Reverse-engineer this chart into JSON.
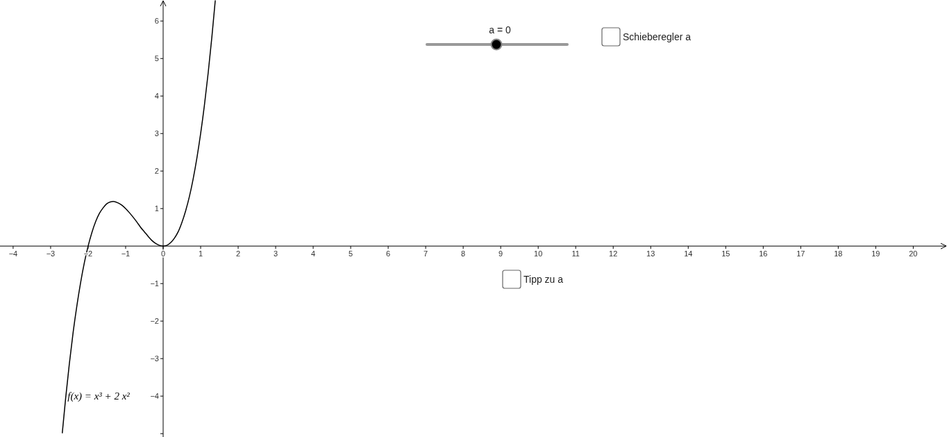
{
  "chart_data": {
    "type": "line",
    "xlim": [
      -4.35,
      20.9
    ],
    "ylim": [
      -5.09,
      6.56
    ],
    "xticks": [
      {
        "value": -4,
        "label": "−4"
      },
      {
        "value": -3,
        "label": "−3"
      },
      {
        "value": -2,
        "label": "−2"
      },
      {
        "value": -1,
        "label": "−1"
      },
      0,
      1,
      2,
      3,
      4,
      5,
      6,
      7,
      8,
      9,
      10,
      11,
      12,
      13,
      14,
      15,
      16,
      17,
      18,
      19,
      20
    ],
    "yticks": [
      {
        "value": -5,
        "label": null
      },
      {
        "value": -4,
        "label": "−4"
      },
      {
        "value": -3,
        "label": "−3"
      },
      {
        "value": -2,
        "label": "−2"
      },
      {
        "value": -1,
        "label": "−1"
      },
      1,
      2,
      3,
      4,
      5,
      6
    ],
    "grid": false,
    "marker": "none",
    "line_style": "solid",
    "series": [
      {
        "color": "#000000",
        "x": [
          -2.69,
          -2.6,
          -2.5,
          -2.4,
          -2.3,
          -2.2,
          -2.1,
          -2.0,
          -1.9,
          -1.8,
          -1.7,
          -1.6,
          -1.5,
          -1.4,
          -1.33,
          -1.2,
          -1.1,
          -1.0,
          -0.9,
          -0.8,
          -0.7,
          -0.6,
          -0.5,
          -0.4,
          -0.3,
          -0.2,
          -0.1,
          0,
          0.1,
          0.2,
          0.3,
          0.4,
          0.5,
          0.6,
          0.7,
          0.8,
          0.9,
          1.0,
          1.1,
          1.2,
          1.3,
          1.39
        ],
        "values": [
          -4.99,
          -4.06,
          -3.13,
          -2.3,
          -1.59,
          -0.97,
          -0.44,
          0,
          0.36,
          0.65,
          0.87,
          1.02,
          1.13,
          1.18,
          1.19,
          1.15,
          1.09,
          1,
          0.89,
          0.77,
          0.64,
          0.5,
          0.38,
          0.26,
          0.15,
          0.07,
          0.02,
          0,
          0.02,
          0.09,
          0.21,
          0.38,
          0.63,
          0.94,
          1.32,
          1.79,
          2.35,
          3,
          3.75,
          4.61,
          5.58,
          6.55
        ]
      }
    ],
    "annotations": [
      "a = 0",
      "Schieberegler a",
      "Tipp zu a",
      {
        "text": "f(x) = x³ + 2 x²",
        "x": -2.55,
        "y": -4
      }
    ]
  }
}
